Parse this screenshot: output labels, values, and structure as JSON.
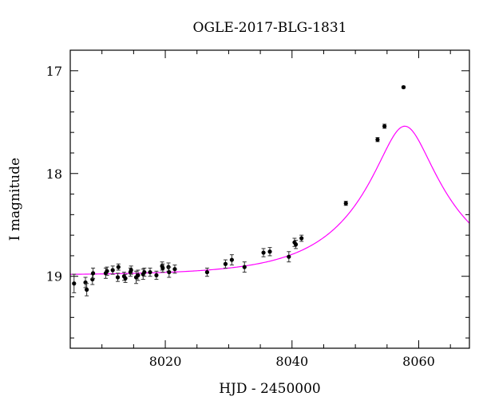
{
  "chart_data": {
    "type": "scatter",
    "title": "OGLE-2017-BLG-1831",
    "xlabel": "HJD - 2450000",
    "ylabel": "I magnitude",
    "xlim": [
      8005,
      8068
    ],
    "ylim": [
      19.7,
      16.8
    ],
    "y_inverted": true,
    "x_ticks": [
      8020,
      8040,
      8060
    ],
    "y_ticks": [
      17,
      18,
      19
    ],
    "grid": false,
    "colors": {
      "points": "#000000",
      "model": "#ff00ff"
    },
    "series": [
      {
        "points": [
          {
            "x": 8005.6,
            "y": 19.07,
            "err": 0.09
          },
          {
            "x": 8007.4,
            "y": 19.06,
            "err": 0.05
          },
          {
            "x": 8007.6,
            "y": 19.13,
            "err": 0.06
          },
          {
            "x": 8008.5,
            "y": 19.03,
            "err": 0.05
          },
          {
            "x": 8008.6,
            "y": 18.97,
            "err": 0.05
          },
          {
            "x": 8010.6,
            "y": 18.97,
            "err": 0.05
          },
          {
            "x": 8010.8,
            "y": 18.95,
            "err": 0.04
          },
          {
            "x": 8011.7,
            "y": 18.94,
            "err": 0.04
          },
          {
            "x": 8012.5,
            "y": 19.01,
            "err": 0.04
          },
          {
            "x": 8012.6,
            "y": 18.91,
            "err": 0.03
          },
          {
            "x": 8013.5,
            "y": 19.0,
            "err": 0.04
          },
          {
            "x": 8013.7,
            "y": 19.02,
            "err": 0.04
          },
          {
            "x": 8014.5,
            "y": 18.96,
            "err": 0.04
          },
          {
            "x": 8014.6,
            "y": 18.94,
            "err": 0.04
          },
          {
            "x": 8015.4,
            "y": 19.01,
            "err": 0.06
          },
          {
            "x": 8015.7,
            "y": 18.99,
            "err": 0.05
          },
          {
            "x": 8016.5,
            "y": 18.98,
            "err": 0.05
          },
          {
            "x": 8016.7,
            "y": 18.96,
            "err": 0.04
          },
          {
            "x": 8017.6,
            "y": 18.96,
            "err": 0.04
          },
          {
            "x": 8018.6,
            "y": 18.99,
            "err": 0.04
          },
          {
            "x": 8019.5,
            "y": 18.9,
            "err": 0.04
          },
          {
            "x": 8019.6,
            "y": 18.92,
            "err": 0.04
          },
          {
            "x": 8020.5,
            "y": 18.91,
            "err": 0.04
          },
          {
            "x": 8020.6,
            "y": 18.96,
            "err": 0.05
          },
          {
            "x": 8021.5,
            "y": 18.93,
            "err": 0.04
          },
          {
            "x": 8026.6,
            "y": 18.96,
            "err": 0.04
          },
          {
            "x": 8029.5,
            "y": 18.88,
            "err": 0.04
          },
          {
            "x": 8030.5,
            "y": 18.84,
            "err": 0.05
          },
          {
            "x": 8032.5,
            "y": 18.91,
            "err": 0.05
          },
          {
            "x": 8035.5,
            "y": 18.77,
            "err": 0.04
          },
          {
            "x": 8036.5,
            "y": 18.76,
            "err": 0.04
          },
          {
            "x": 8039.5,
            "y": 18.81,
            "err": 0.05
          },
          {
            "x": 8040.4,
            "y": 18.67,
            "err": 0.04
          },
          {
            "x": 8040.6,
            "y": 18.69,
            "err": 0.04
          },
          {
            "x": 8041.5,
            "y": 18.63,
            "err": 0.03
          },
          {
            "x": 8048.5,
            "y": 18.29,
            "err": 0.02
          },
          {
            "x": 8053.5,
            "y": 17.67,
            "err": 0.02
          },
          {
            "x": 8054.6,
            "y": 17.54,
            "err": 0.02
          },
          {
            "x": 8057.6,
            "y": 17.16,
            "err": 0.01
          }
        ]
      }
    ],
    "model": {
      "type": "line",
      "description_params": {
        "t0": 8057.8,
        "u0": 0.27,
        "tE": 14.5,
        "baseline": 18.99
      }
    }
  }
}
